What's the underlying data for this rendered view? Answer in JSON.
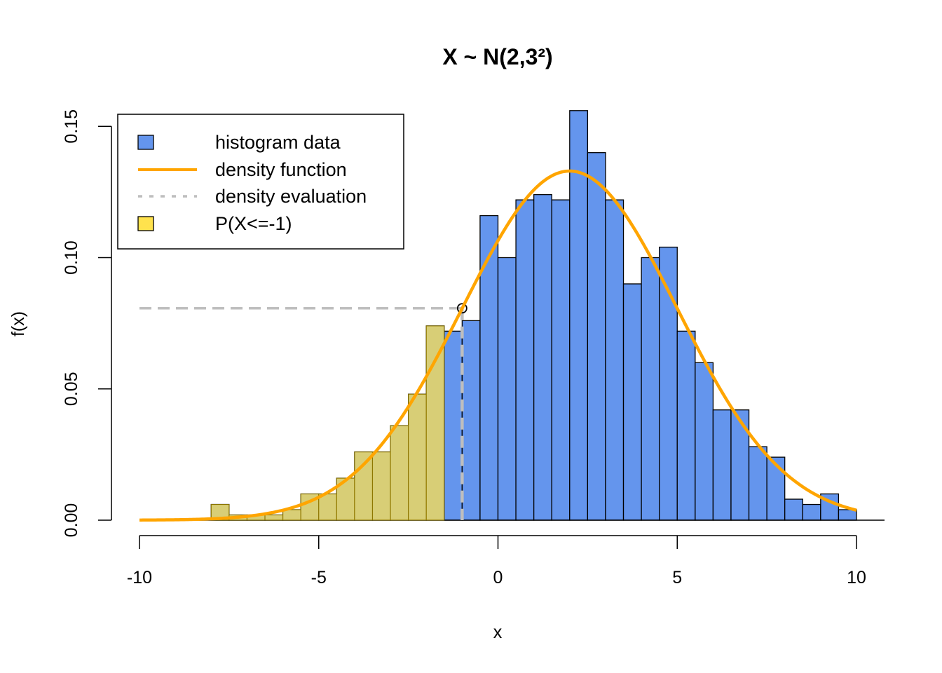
{
  "chart_data": {
    "type": "bar",
    "title": "X ~ N(2,3²)",
    "xlabel": "x",
    "ylabel": "f(x)",
    "xlim": [
      -10,
      10
    ],
    "ylim": [
      0,
      0.155
    ],
    "x_ticks": [
      "-10",
      "-5",
      "0",
      "5",
      "10"
    ],
    "y_ticks": [
      "0.00",
      "0.05",
      "0.10",
      "0.15"
    ],
    "histogram": {
      "name": "histogram data",
      "bin_width": 0.5,
      "color": "#6495ED",
      "bins": [
        {
          "start": -8.0,
          "density": 0.006
        },
        {
          "start": -7.5,
          "density": 0.002
        },
        {
          "start": -7.0,
          "density": 0.002
        },
        {
          "start": -6.5,
          "density": 0.002
        },
        {
          "start": -6.0,
          "density": 0.004
        },
        {
          "start": -5.5,
          "density": 0.01
        },
        {
          "start": -5.0,
          "density": 0.01
        },
        {
          "start": -4.5,
          "density": 0.016
        },
        {
          "start": -4.0,
          "density": 0.026
        },
        {
          "start": -3.5,
          "density": 0.026
        },
        {
          "start": -3.0,
          "density": 0.036
        },
        {
          "start": -2.5,
          "density": 0.048
        },
        {
          "start": -2.0,
          "density": 0.074
        },
        {
          "start": -1.5,
          "density": 0.072
        },
        {
          "start": -1.0,
          "density": 0.076
        },
        {
          "start": -0.5,
          "density": 0.116
        },
        {
          "start": 0.0,
          "density": 0.1
        },
        {
          "start": 0.5,
          "density": 0.122
        },
        {
          "start": 1.0,
          "density": 0.124
        },
        {
          "start": 1.5,
          "density": 0.122
        },
        {
          "start": 2.0,
          "density": 0.156
        },
        {
          "start": 2.5,
          "density": 0.14
        },
        {
          "start": 3.0,
          "density": 0.122
        },
        {
          "start": 3.5,
          "density": 0.09
        },
        {
          "start": 4.0,
          "density": 0.1
        },
        {
          "start": 4.5,
          "density": 0.104
        },
        {
          "start": 5.0,
          "density": 0.072
        },
        {
          "start": 5.5,
          "density": 0.06
        },
        {
          "start": 6.0,
          "density": 0.042
        },
        {
          "start": 6.5,
          "density": 0.042
        },
        {
          "start": 7.0,
          "density": 0.028
        },
        {
          "start": 7.5,
          "density": 0.024
        },
        {
          "start": 8.0,
          "density": 0.008
        },
        {
          "start": 8.5,
          "density": 0.006
        },
        {
          "start": 9.0,
          "density": 0.01
        },
        {
          "start": 9.5,
          "density": 0.004
        }
      ]
    },
    "density_curve": {
      "name": "density function",
      "distribution": "normal",
      "mean": 2,
      "sd": 3,
      "x_range": [
        -10,
        10
      ],
      "color": "#FFA500"
    },
    "density_evaluation": {
      "name": "density evaluation",
      "x": -1,
      "y": 0.0807,
      "color": "#BEBEBE"
    },
    "probability_region": {
      "name": "P(X<=-1)",
      "upper_bound": -1,
      "color": "#FFE24D"
    },
    "legend": {
      "position": "top-left",
      "entries": [
        {
          "label": "histogram data",
          "symbol": "box",
          "color": "#6495ED"
        },
        {
          "label": "density function",
          "symbol": "line",
          "color": "#FFA500"
        },
        {
          "label": "density evaluation",
          "symbol": "dotted-line",
          "color": "#BEBEBE"
        },
        {
          "label": "P(X<=-1)",
          "symbol": "box",
          "color": "#FFE24D"
        }
      ]
    }
  }
}
